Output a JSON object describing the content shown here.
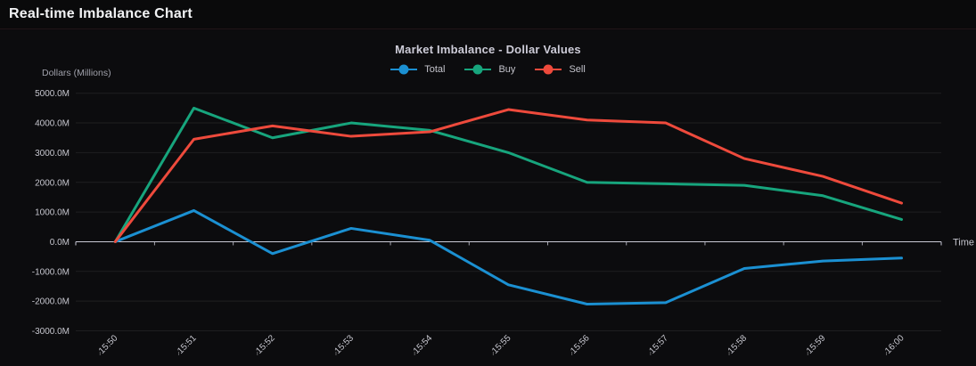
{
  "page": {
    "title": "Real-time Imbalance Chart"
  },
  "chart_data": {
    "type": "line",
    "title": "Market Imbalance - Dollar Values",
    "ylabel": "Dollars (Millions)",
    "xlabel": "Time",
    "categories": [
      "15:50",
      "15:51",
      "15:52",
      "15:53",
      "15:54",
      "15:55",
      "15:56",
      "15:57",
      "15:58",
      "15:59",
      "16:00"
    ],
    "series": [
      {
        "name": "Total",
        "color": "#1b90d2",
        "values": [
          0,
          1050,
          -400,
          450,
          50,
          -1450,
          -2100,
          -2050,
          -900,
          -650,
          -550
        ]
      },
      {
        "name": "Buy",
        "color": "#17a57d",
        "values": [
          0,
          4500,
          3500,
          4000,
          3750,
          3000,
          2000,
          1950,
          1900,
          1550,
          750
        ]
      },
      {
        "name": "Sell",
        "color": "#ee4a3c",
        "values": [
          0,
          3450,
          3900,
          3550,
          3700,
          4450,
          4100,
          4000,
          2800,
          2200,
          1300
        ]
      }
    ],
    "value_unit": "millions",
    "ylim": [
      -3000,
      5000
    ],
    "ytick_step": 1000,
    "ytick_suffix": "M",
    "grid": "horizontal-only",
    "legend_position": "top-center",
    "axis_color": "#c9c9d5",
    "grid_color": "rgba(255,255,255,0.08)",
    "tick_label_color": "#c6c6ce",
    "axis_title_color": "#9fa0aa"
  }
}
